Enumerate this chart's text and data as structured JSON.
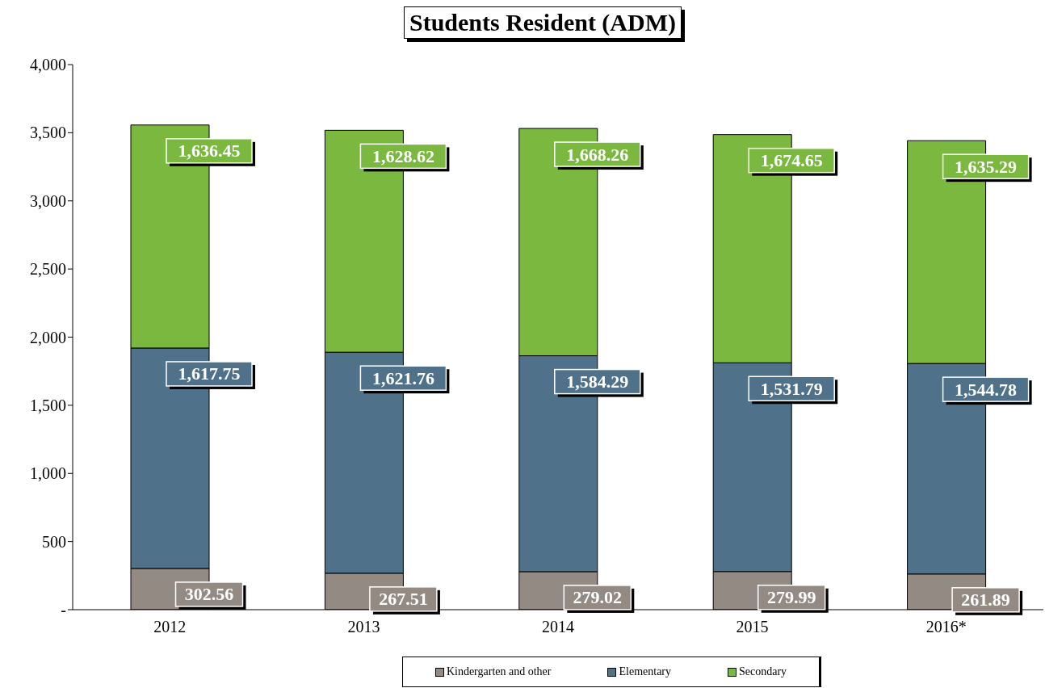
{
  "chart_data": {
    "type": "bar",
    "title": "Students Resident (ADM)",
    "stacked": true,
    "categories": [
      "2012",
      "2013",
      "2014",
      "2015",
      "2016*"
    ],
    "series": [
      {
        "name": "Kindergarten and other",
        "color": "#948a84",
        "values": [
          302.56,
          267.51,
          279.02,
          279.99,
          261.89
        ],
        "value_labels": [
          "302.56",
          "267.51",
          "279.02",
          "279.99",
          "261.89"
        ]
      },
      {
        "name": "Elementary",
        "color": "#4f7189",
        "values": [
          1617.75,
          1621.76,
          1584.29,
          1531.79,
          1544.78
        ],
        "value_labels": [
          "1,617.75",
          "1,621.76",
          "1,584.29",
          "1,531.79",
          "1,544.78"
        ]
      },
      {
        "name": "Secondary",
        "color": "#7ab840",
        "values": [
          1636.45,
          1628.62,
          1668.26,
          1674.65,
          1635.29
        ],
        "value_labels": [
          "1,636.45",
          "1,628.62",
          "1,668.26",
          "1,674.65",
          "1,635.29"
        ]
      }
    ],
    "ylim": [
      0,
      4000
    ],
    "yticks": [
      {
        "value": 0,
        "label": "-"
      },
      500,
      {
        "value": 1000,
        "label": "1,000"
      },
      {
        "value": 1500,
        "label": "1,500"
      },
      {
        "value": 2000,
        "label": "2,000"
      },
      {
        "value": 2500,
        "label": "2,500"
      },
      {
        "value": 3000,
        "label": "3,000"
      },
      {
        "value": 3500,
        "label": "3,500"
      },
      {
        "value": 4000,
        "label": "4,000"
      }
    ],
    "grid": false,
    "legend": "bottom"
  }
}
